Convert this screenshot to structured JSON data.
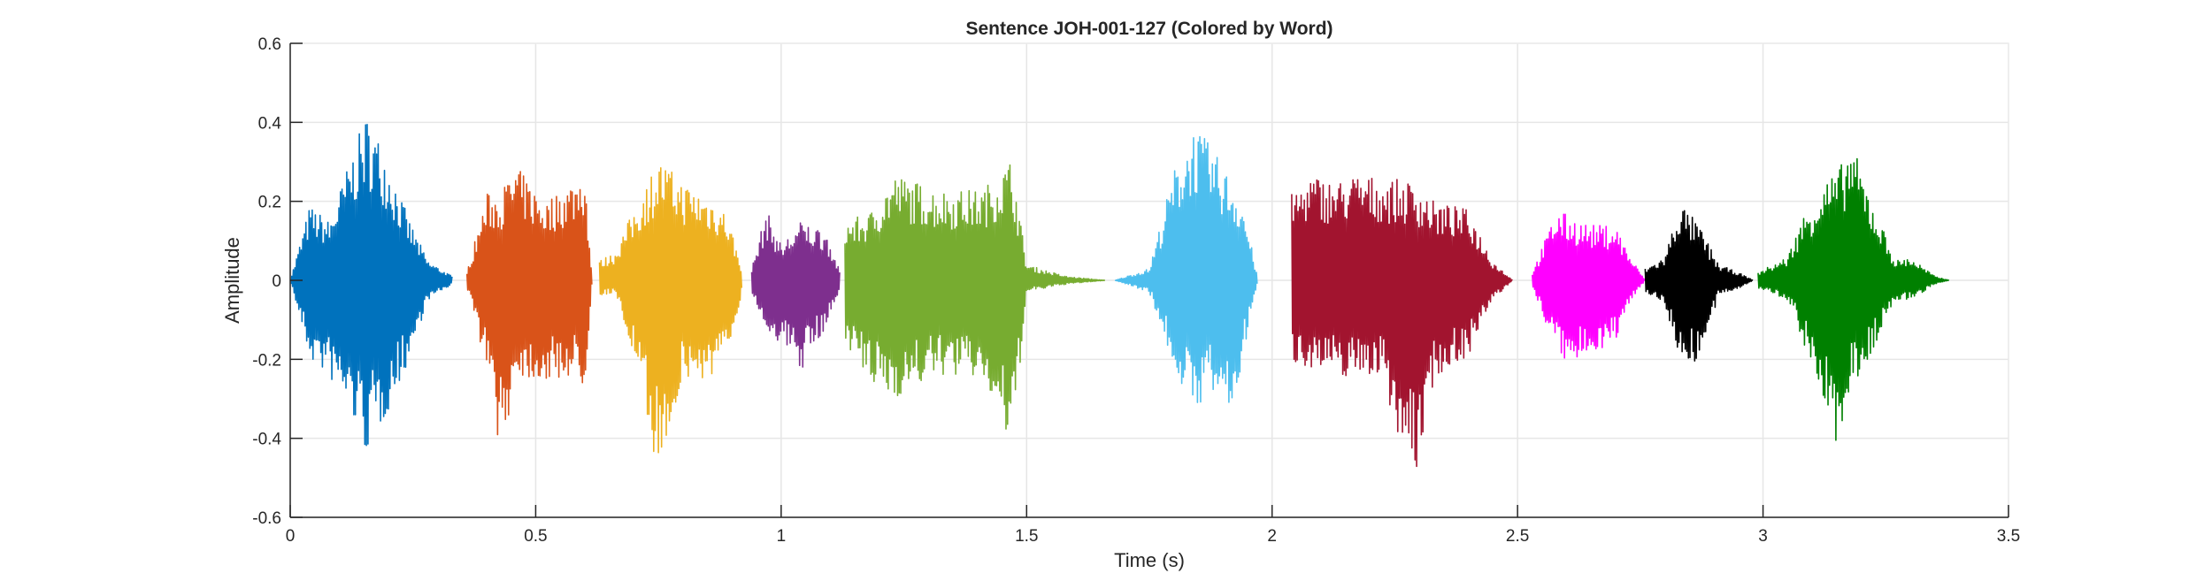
{
  "chart_data": {
    "type": "line",
    "title": "Sentence JOH-001-127 (Colored by Word)",
    "xlabel": "Time (s)",
    "ylabel": "Amplitude",
    "xlim": [
      0,
      3.5
    ],
    "ylim": [
      -0.6,
      0.6
    ],
    "xticks": [
      0,
      0.5,
      1,
      1.5,
      2,
      2.5,
      3,
      3.5
    ],
    "xtick_labels": [
      "0",
      "0.5",
      "1",
      "1.5",
      "2",
      "2.5",
      "3",
      "3.5"
    ],
    "yticks": [
      -0.6,
      -0.4,
      -0.2,
      0,
      0.2,
      0.4,
      0.6
    ],
    "ytick_labels": [
      "-0.6",
      "-0.4",
      "-0.2",
      "0",
      "0.2",
      "0.4",
      "0.6"
    ],
    "grid": true,
    "series": [
      {
        "color": "#0072BD",
        "values": [
          [
            0.0,
            0.0,
            0.0
          ],
          [
            0.04,
            0.19,
            -0.2
          ],
          [
            0.08,
            0.15,
            -0.25
          ],
          [
            0.12,
            0.3,
            -0.33
          ],
          [
            0.155,
            0.42,
            -0.44
          ],
          [
            0.19,
            0.34,
            -0.36
          ],
          [
            0.24,
            0.16,
            -0.21
          ],
          [
            0.28,
            0.05,
            -0.05
          ],
          [
            0.33,
            0.01,
            -0.01
          ]
        ]
      },
      {
        "color": "#D95319",
        "values": [
          [
            0.36,
            0.02,
            -0.02
          ],
          [
            0.4,
            0.22,
            -0.22
          ],
          [
            0.43,
            0.23,
            -0.45
          ],
          [
            0.46,
            0.29,
            -0.24
          ],
          [
            0.52,
            0.2,
            -0.26
          ],
          [
            0.58,
            0.26,
            -0.24
          ],
          [
            0.6,
            0.29,
            -0.28
          ],
          [
            0.615,
            0.0,
            0.0
          ]
        ]
      },
      {
        "color": "#EDB120",
        "values": [
          [
            0.63,
            0.05,
            -0.04
          ],
          [
            0.66,
            0.07,
            -0.03
          ],
          [
            0.7,
            0.18,
            -0.2
          ],
          [
            0.75,
            0.31,
            -0.49
          ],
          [
            0.8,
            0.25,
            -0.26
          ],
          [
            0.86,
            0.21,
            -0.25
          ],
          [
            0.89,
            0.17,
            -0.2
          ],
          [
            0.92,
            0.03,
            -0.03
          ]
        ]
      },
      {
        "color": "#7E2F8E",
        "values": [
          [
            0.94,
            0.03,
            -0.03
          ],
          [
            0.97,
            0.18,
            -0.13
          ],
          [
            1.0,
            0.09,
            -0.16
          ],
          [
            1.04,
            0.15,
            -0.23
          ],
          [
            1.09,
            0.13,
            -0.12
          ],
          [
            1.12,
            0.02,
            -0.02
          ]
        ]
      },
      {
        "color": "#77AC30",
        "values": [
          [
            1.13,
            0.15,
            -0.15
          ],
          [
            1.18,
            0.17,
            -0.27
          ],
          [
            1.23,
            0.27,
            -0.3
          ],
          [
            1.32,
            0.23,
            -0.24
          ],
          [
            1.41,
            0.23,
            -0.25
          ],
          [
            1.47,
            0.31,
            -0.44
          ],
          [
            1.5,
            0.04,
            -0.03
          ],
          [
            1.58,
            0.01,
            -0.01
          ],
          [
            1.66,
            0.0,
            0.0
          ]
        ]
      },
      {
        "color": "#4DBEEE",
        "values": [
          [
            1.68,
            0.0,
            0.0
          ],
          [
            1.75,
            0.03,
            -0.03
          ],
          [
            1.8,
            0.28,
            -0.22
          ],
          [
            1.84,
            0.39,
            -0.34
          ],
          [
            1.87,
            0.35,
            -0.28
          ],
          [
            1.92,
            0.25,
            -0.35
          ],
          [
            1.94,
            0.2,
            -0.2
          ],
          [
            1.97,
            0.01,
            -0.01
          ]
        ]
      },
      {
        "color": "#A2142F",
        "values": [
          [
            2.04,
            0.22,
            -0.21
          ],
          [
            2.08,
            0.27,
            -0.22
          ],
          [
            2.13,
            0.25,
            -0.25
          ],
          [
            2.17,
            0.27,
            -0.24
          ],
          [
            2.22,
            0.26,
            -0.24
          ],
          [
            2.29,
            0.25,
            -0.52
          ],
          [
            2.33,
            0.2,
            -0.25
          ],
          [
            2.4,
            0.18,
            -0.19
          ],
          [
            2.45,
            0.05,
            -0.05
          ],
          [
            2.49,
            0.0,
            0.0
          ]
        ]
      },
      {
        "color": "#FF00FF",
        "values": [
          [
            2.53,
            0.02,
            -0.02
          ],
          [
            2.58,
            0.18,
            -0.18
          ],
          [
            2.61,
            0.16,
            -0.23
          ],
          [
            2.65,
            0.14,
            -0.18
          ],
          [
            2.7,
            0.14,
            -0.16
          ],
          [
            2.73,
            0.06,
            -0.05
          ],
          [
            2.76,
            0.0,
            0.0
          ]
        ]
      },
      {
        "color": "#000000",
        "values": [
          [
            2.76,
            0.03,
            -0.03
          ],
          [
            2.8,
            0.06,
            -0.06
          ],
          [
            2.83,
            0.2,
            -0.2
          ],
          [
            2.87,
            0.14,
            -0.21
          ],
          [
            2.91,
            0.04,
            -0.04
          ],
          [
            2.95,
            0.02,
            -0.02
          ],
          [
            2.98,
            0.0,
            0.0
          ]
        ]
      },
      {
        "color": "#008000",
        "values": [
          [
            2.99,
            0.02,
            -0.02
          ],
          [
            3.05,
            0.06,
            -0.05
          ],
          [
            3.08,
            0.16,
            -0.15
          ],
          [
            3.13,
            0.26,
            -0.34
          ],
          [
            3.15,
            0.27,
            -0.43
          ],
          [
            3.18,
            0.35,
            -0.28
          ],
          [
            3.22,
            0.21,
            -0.19
          ],
          [
            3.27,
            0.05,
            -0.05
          ],
          [
            3.3,
            0.06,
            -0.05
          ],
          [
            3.35,
            0.01,
            -0.01
          ],
          [
            3.38,
            0.0,
            0.0
          ]
        ]
      }
    ]
  }
}
